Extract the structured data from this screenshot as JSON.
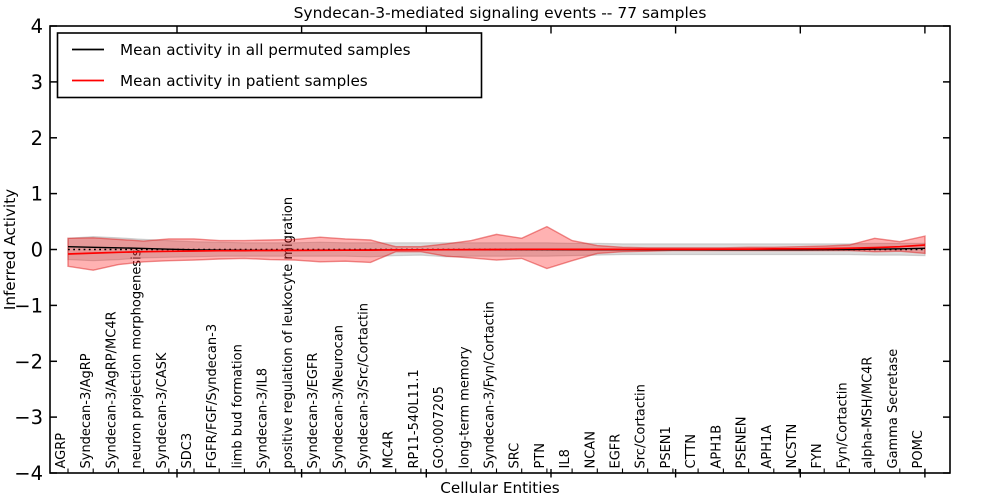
{
  "chart_data": {
    "type": "line",
    "title": "Syndecan-3-mediated signaling events -- 77 samples",
    "xlabel": "Cellular Entities",
    "ylabel": "Inferred Activity",
    "ylim": [
      -4,
      4
    ],
    "ytick_values": [
      4,
      3,
      2,
      1,
      0,
      -1,
      -2,
      -3,
      -4
    ],
    "ytick_labels": [
      "4",
      "3",
      "2",
      "1",
      "0",
      "−1",
      "−2",
      "−3",
      "−4"
    ],
    "grid": false,
    "legend": {
      "position": "upper left",
      "entries": [
        "Mean activity in all permuted samples",
        "Mean activity in patient samples"
      ],
      "colors": [
        "#000000",
        "#ff0000"
      ]
    },
    "baseline": {
      "value": 0,
      "style": "dotted",
      "color": "#000000"
    },
    "categories": [
      "AGRP",
      "Syndecan-3/AgRP",
      "Syndecan-3/AgRP/MC4R",
      "neuron projection morphogenesis",
      "Syndecan-3/CASK",
      "SDC3",
      "FGFR/FGF/Syndecan-3",
      "limb bud formation",
      "Syndecan-3/IL8",
      "positive regulation of leukocyte migration",
      "Syndecan-3/EGFR",
      "Syndecan-3/Neurocan",
      "Syndecan-3/Src/Cortactin",
      "MC4R",
      "RP11-540L11.1",
      "GO:0007205",
      "long-term memory",
      "Syndecan-3/Fyn/Cortactin",
      "SRC",
      "PTN",
      "IL8",
      "NCAN",
      "EGFR",
      "Src/Cortactin",
      "PSEN1",
      "CTTN",
      "APH1B",
      "PSENEN",
      "APH1A",
      "NCSTN",
      "FYN",
      "Fyn/Cortactin",
      "alpha-MSH/MC4R",
      "Gamma Secretase",
      "POMC"
    ],
    "series": [
      {
        "name": "Mean activity in all permuted samples",
        "color": "#000000",
        "style": "solid",
        "values": [
          0.05,
          0.04,
          0.03,
          0.02,
          0.005,
          -0.005,
          -0.01,
          -0.012,
          -0.012,
          -0.012,
          -0.01,
          -0.01,
          -0.008,
          -0.005,
          -0.003,
          -0.003,
          -0.003,
          -0.003,
          -0.003,
          -0.003,
          -0.005,
          -0.006,
          -0.006,
          -0.006,
          -0.006,
          -0.006,
          -0.006,
          -0.006,
          -0.005,
          -0.005,
          -0.003,
          0,
          0.005,
          0.012,
          0.022
        ]
      },
      {
        "name": "Mean activity in patient samples",
        "color": "#ff0000",
        "style": "solid",
        "values": [
          -0.08,
          -0.065,
          -0.05,
          -0.04,
          -0.032,
          -0.026,
          -0.022,
          -0.02,
          -0.018,
          -0.016,
          -0.014,
          -0.012,
          -0.01,
          -0.008,
          -0.006,
          -0.004,
          -0.002,
          0,
          0.002,
          0.004,
          0.002,
          0.001,
          0.001,
          0.002,
          0.003,
          0.004,
          0.006,
          0.008,
          0.01,
          0.013,
          0.017,
          0.024,
          0.034,
          0.05,
          0.08
        ]
      }
    ],
    "bands": [
      {
        "name": "permuted samples range",
        "color": "#808080",
        "opacity": 0.28,
        "upper": [
          0.2,
          0.23,
          0.21,
          0.18,
          0.16,
          0.14,
          0.13,
          0.12,
          0.12,
          0.12,
          0.13,
          0.12,
          0.12,
          0.12,
          0.12,
          0.12,
          0.12,
          0.12,
          0.12,
          0.12,
          0.11,
          0.11,
          0.1,
          0.1,
          0.1,
          0.1,
          0.1,
          0.1,
          0.1,
          0.1,
          0.1,
          0.1,
          0.11,
          0.11,
          0.11
        ],
        "lower": [
          -0.18,
          -0.2,
          -0.18,
          -0.15,
          -0.14,
          -0.13,
          -0.12,
          -0.12,
          -0.12,
          -0.12,
          -0.12,
          -0.12,
          -0.13,
          -0.11,
          -0.1,
          -0.13,
          -0.12,
          -0.12,
          -0.12,
          -0.12,
          -0.11,
          -0.1,
          -0.09,
          -0.09,
          -0.09,
          -0.09,
          -0.09,
          -0.09,
          -0.09,
          -0.09,
          -0.09,
          -0.09,
          -0.1,
          -0.1,
          -0.11
        ]
      },
      {
        "name": "patient samples range",
        "color": "#ff0000",
        "opacity": 0.3,
        "upper": [
          0.2,
          0.21,
          0.18,
          0.15,
          0.19,
          0.19,
          0.16,
          0.16,
          0.17,
          0.18,
          0.22,
          0.19,
          0.17,
          0.05,
          0.05,
          0.1,
          0.16,
          0.27,
          0.2,
          0.41,
          0.16,
          0.07,
          0.04,
          0.03,
          0.03,
          0.03,
          0.03,
          0.04,
          0.04,
          0.05,
          0.06,
          0.08,
          0.2,
          0.14,
          0.24
        ],
        "lower": [
          -0.3,
          -0.37,
          -0.27,
          -0.22,
          -0.2,
          -0.19,
          -0.17,
          -0.16,
          -0.18,
          -0.19,
          -0.22,
          -0.21,
          -0.23,
          -0.04,
          -0.04,
          -0.12,
          -0.15,
          -0.19,
          -0.16,
          -0.34,
          -0.2,
          -0.07,
          -0.04,
          -0.03,
          -0.02,
          -0.02,
          -0.02,
          -0.02,
          -0.02,
          -0.02,
          -0.02,
          -0.02,
          -0.04,
          -0.03,
          -0.07
        ]
      }
    ]
  }
}
